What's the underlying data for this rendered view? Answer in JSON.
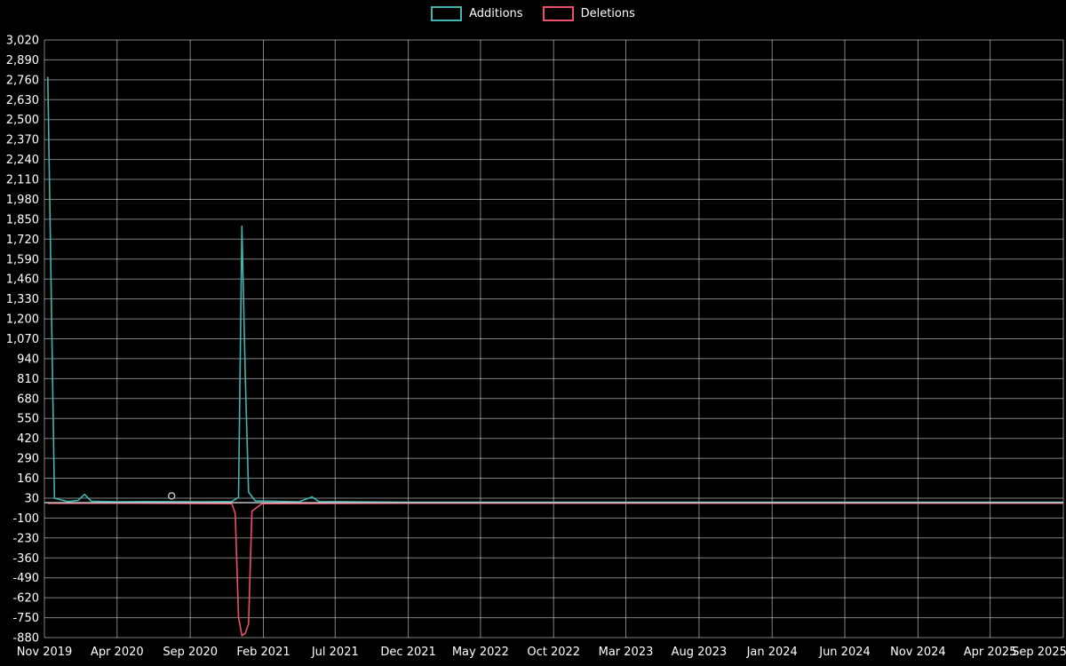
{
  "page": {
    "background": "#000000",
    "text_color": "#ffffff"
  },
  "chart_data": {
    "type": "line",
    "title": "",
    "legend_position": "top-center",
    "x_axis": {
      "type": "time",
      "start": "2019-11-01",
      "end": "2025-09-01",
      "ticks": [
        {
          "date": "2019-11-01",
          "label": "Nov 2019"
        },
        {
          "date": "2020-04-01",
          "label": "Apr 2020"
        },
        {
          "date": "2020-09-01",
          "label": "Sep 2020"
        },
        {
          "date": "2021-02-01",
          "label": "Feb 2021"
        },
        {
          "date": "2021-07-01",
          "label": "Jul 2021"
        },
        {
          "date": "2021-12-01",
          "label": "Dec 2021"
        },
        {
          "date": "2022-05-01",
          "label": "May 2022"
        },
        {
          "date": "2022-10-01",
          "label": "Oct 2022"
        },
        {
          "date": "2023-03-01",
          "label": "Mar 2023"
        },
        {
          "date": "2023-08-01",
          "label": "Aug 2023"
        },
        {
          "date": "2024-01-01",
          "label": "Jan 2024"
        },
        {
          "date": "2024-06-01",
          "label": "Jun 2024"
        },
        {
          "date": "2024-11-01",
          "label": "Nov 2024"
        },
        {
          "date": "2025-04-01",
          "label": "Apr 2025"
        },
        {
          "date": "2025-09-01",
          "label": "Sep 2025"
        }
      ]
    },
    "y_axis": {
      "min": -880,
      "max": 3020,
      "tick_step": 130,
      "tick_labels": [
        "3,020",
        "2,890",
        "2,760",
        "2,630",
        "2,500",
        "2,370",
        "2,240",
        "2,110",
        "1,980",
        "1,850",
        "1,720",
        "1,590",
        "1,460",
        "1,330",
        "1,200",
        "1,070",
        "940",
        "810",
        "680",
        "550",
        "420",
        "290",
        "160",
        "30",
        "-100",
        "-230",
        "-360",
        "-490",
        "-620",
        "-750",
        "-880"
      ]
    },
    "grid": {
      "horizontal": true,
      "vertical": true,
      "color": "rgba(255,255,255,0.5)"
    },
    "zero_line": {
      "value": 0,
      "color": "#cfd2d4"
    },
    "series": [
      {
        "name": "Additions",
        "color": "#3fb5ad",
        "points": [
          [
            "2019-11-08",
            2780
          ],
          [
            "2019-11-22",
            30
          ],
          [
            "2019-12-20",
            8
          ],
          [
            "2020-01-10",
            15
          ],
          [
            "2020-01-24",
            55
          ],
          [
            "2020-02-07",
            10
          ],
          [
            "2020-04-03",
            6
          ],
          [
            "2020-06-05",
            8
          ],
          [
            "2020-10-02",
            6
          ],
          [
            "2020-11-27",
            8
          ],
          [
            "2020-12-11",
            35
          ],
          [
            "2020-12-18",
            1805
          ],
          [
            "2020-12-25",
            830
          ],
          [
            "2021-01-01",
            70
          ],
          [
            "2021-01-15",
            12
          ],
          [
            "2021-04-16",
            6
          ],
          [
            "2021-05-14",
            38
          ],
          [
            "2021-05-28",
            8
          ],
          [
            "2021-12-01",
            4
          ],
          [
            "2022-12-01",
            4
          ],
          [
            "2023-12-01",
            4
          ],
          [
            "2024-12-01",
            4
          ],
          [
            "2025-09-01",
            4
          ]
        ]
      },
      {
        "name": "Deletions",
        "color": "#ec4f6b",
        "points": [
          [
            "2019-11-08",
            -4
          ],
          [
            "2020-05-01",
            -3
          ],
          [
            "2020-11-27",
            -6
          ],
          [
            "2020-12-04",
            -70
          ],
          [
            "2020-12-11",
            -745
          ],
          [
            "2020-12-18",
            -868
          ],
          [
            "2020-12-25",
            -852
          ],
          [
            "2021-01-01",
            -790
          ],
          [
            "2021-01-08",
            -55
          ],
          [
            "2021-01-29",
            -6
          ],
          [
            "2021-12-01",
            -3
          ],
          [
            "2023-06-01",
            -3
          ],
          [
            "2025-09-01",
            -3
          ]
        ]
      }
    ],
    "markers": [
      {
        "series": "Additions",
        "date": "2020-07-24",
        "value": 45,
        "style": "open-circle",
        "color": "#c6cbcd"
      }
    ]
  }
}
